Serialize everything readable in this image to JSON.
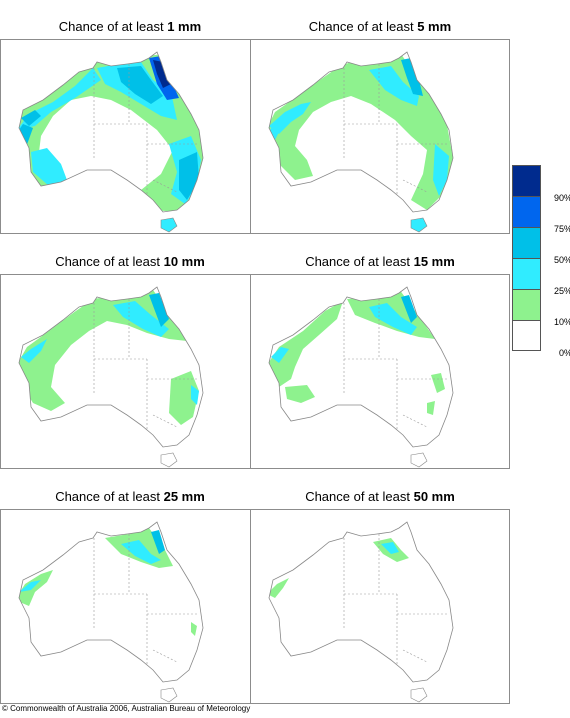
{
  "panels": [
    {
      "prefix": "Chance of at least",
      "amount": "1 mm"
    },
    {
      "prefix": "Chance of at least",
      "amount": "5 mm"
    },
    {
      "prefix": "Chance of at least",
      "amount": "10 mm"
    },
    {
      "prefix": "Chance of at least",
      "amount": "15 mm"
    },
    {
      "prefix": "Chance of at least",
      "amount": "25 mm"
    },
    {
      "prefix": "Chance of at least",
      "amount": "50 mm"
    }
  ],
  "legend": {
    "labels": [
      "90%",
      "75%",
      "50%",
      "25%",
      "10%",
      "0%"
    ],
    "colors": {
      "above_90": "#002b8e",
      "75_90": "#0066ee",
      "50_75": "#00c0e8",
      "25_50": "#30ecff",
      "10_25": "#8ef28e",
      "0_10": "#ffffff"
    }
  },
  "copyright": "© Commonwealth of Australia 2006, Australian Bureau of Meteorology"
}
